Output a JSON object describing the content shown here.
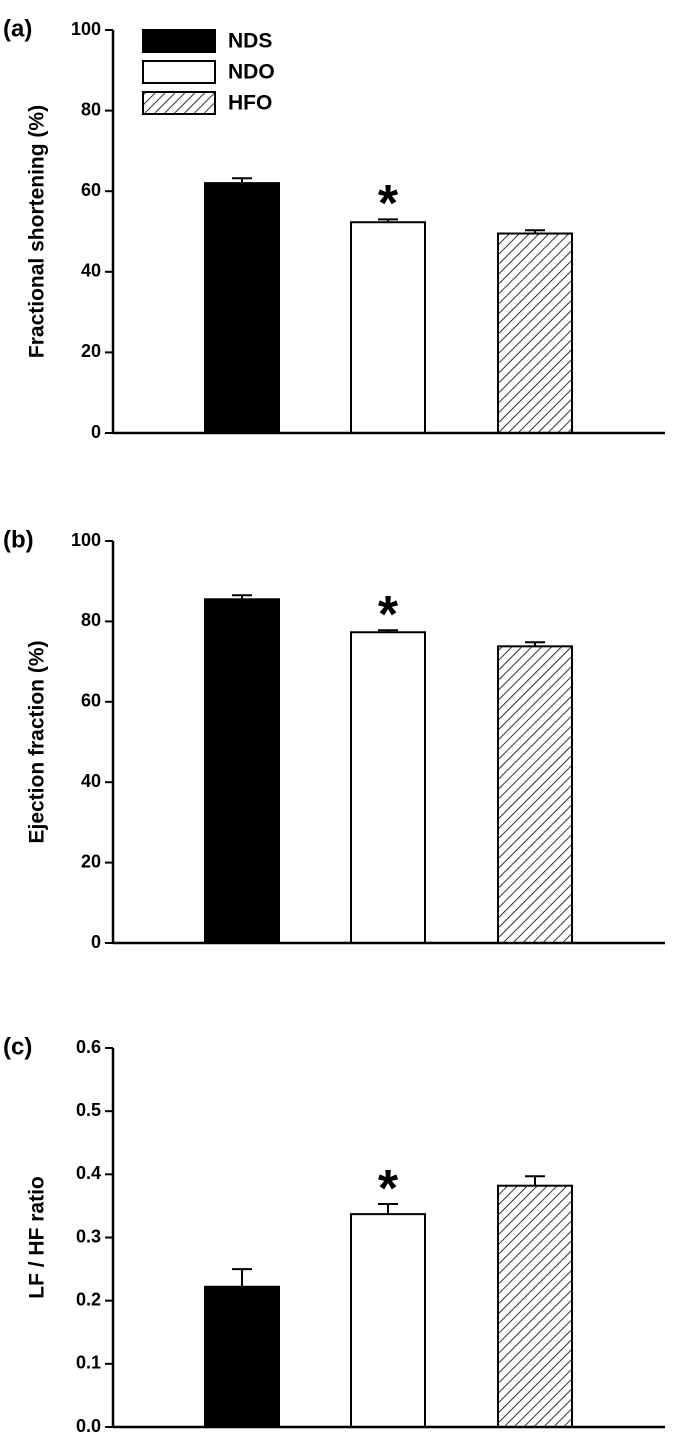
{
  "chart_data": [
    {
      "type": "bar",
      "panel_label": "(a)",
      "y_label": "Fractional shortening (%)",
      "annotation": "*",
      "ylim": [
        0,
        100
      ],
      "yticks": [
        0,
        20,
        40,
        60,
        80,
        100
      ],
      "series": [
        {
          "name": "NDS",
          "color": "#000000",
          "hatch": false,
          "values": [
            62
          ],
          "errors": [
            1.2
          ]
        },
        {
          "name": "NDO",
          "color": "#ffffff",
          "hatch": false,
          "values": [
            52.3
          ],
          "errors": [
            0.7
          ]
        },
        {
          "name": "HFO",
          "color": "#ffffff",
          "hatch": true,
          "values": [
            49.5
          ],
          "errors": [
            0.8
          ]
        }
      ]
    },
    {
      "type": "bar",
      "panel_label": "(b)",
      "y_label": "Ejection fraction (%)",
      "annotation": "*",
      "ylim": [
        0,
        100
      ],
      "yticks": [
        0,
        20,
        40,
        60,
        80,
        100
      ],
      "series": [
        {
          "color": "#000000",
          "hatch": false,
          "values": [
            85.5
          ],
          "errors": [
            1
          ]
        },
        {
          "color": "#ffffff",
          "hatch": false,
          "values": [
            77.3
          ],
          "errors": [
            0.5
          ]
        },
        {
          "color": "#ffffff",
          "hatch": true,
          "values": [
            73.8
          ],
          "errors": [
            1
          ]
        }
      ]
    },
    {
      "type": "bar",
      "panel_label": "(c)",
      "y_label": "LF / HF ratio",
      "annotation": "*",
      "ylim": [
        0,
        0.6
      ],
      "yticks": [
        {
          "value": 0,
          "label": "0.0"
        },
        0.1,
        0.2,
        0.3,
        0.4,
        0.5,
        0.6
      ],
      "series": [
        {
          "color": "#000000",
          "hatch": false,
          "values": [
            0.222
          ],
          "errors": [
            0.028
          ]
        },
        {
          "color": "#ffffff",
          "hatch": false,
          "values": [
            0.337
          ],
          "errors": [
            0.016
          ]
        },
        {
          "color": "#ffffff",
          "hatch": true,
          "values": [
            0.382
          ],
          "errors": [
            0.015
          ]
        }
      ]
    }
  ]
}
